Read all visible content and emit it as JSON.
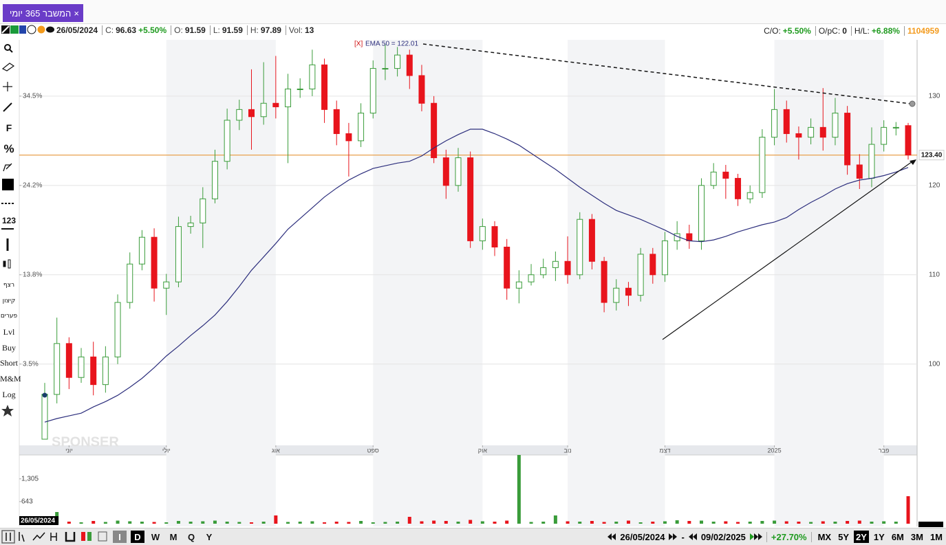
{
  "ui": {
    "tab": "המשבר 365 יומי",
    "tab_close": "×",
    "info": {
      "date": "26/05/2024",
      "c_label": "C:",
      "c": "96.63",
      "change": "+5.50%",
      "o_label": "O:",
      "o": "91.59",
      "l_label": "L:",
      "l": "91.59",
      "h_label": "H:",
      "h": "97.89",
      "vol_label": "Vol:",
      "vol": "13"
    },
    "right_info": {
      "co_label": "C/O:",
      "co": "+5.50%",
      "opc_label": "O/pC:",
      "opc": "0",
      "hl_label": "H/L:",
      "hl": "+6.88%",
      "id": "1104959"
    },
    "left_tools": [
      "F",
      "%",
      "123",
      "רצף",
      "קיצון",
      "פערים",
      "Lvl",
      "Buy",
      "Short",
      "M&M",
      "Log"
    ],
    "watermark": "SPONSER",
    "volume_date": "26/05/2024",
    "bottom": {
      "periods": [
        "I",
        "D",
        "W",
        "M",
        "Q",
        "Y"
      ],
      "from": "26/05/2024",
      "dash": "-",
      "to": "09/02/2025",
      "change": "+27.70%",
      "ranges": [
        "MX",
        "5Y",
        "2Y",
        "1Y",
        "6M",
        "3M",
        "1M"
      ]
    }
  },
  "chart_data": {
    "type": "candlestick",
    "up_color": "#3a9c3a",
    "down_color": "#e8141c",
    "open": [
      91.59,
      96.6,
      102.3,
      98.5,
      100.8,
      97.7,
      100.8,
      106.9,
      111.2,
      114.2,
      108.5,
      109.2,
      115.4,
      115.8,
      118.5,
      122.7,
      127.3,
      128.5,
      127.7,
      129.2,
      128.8,
      130.8,
      130.8,
      133.5,
      128.5,
      125.8,
      125.0,
      128.1,
      133.1,
      133.1,
      134.6,
      132.3,
      129.2,
      123.1,
      120.0,
      123.1,
      113.8,
      115.4,
      113.1,
      108.5,
      109.2,
      110.0,
      110.8,
      111.5,
      110.0,
      116.2,
      111.5,
      106.9,
      108.5,
      107.7,
      112.3,
      110.0,
      113.8,
      114.6,
      113.8,
      120.0,
      121.5,
      120.8,
      118.5,
      119.2,
      125.4,
      128.5,
      125.8,
      125.4,
      126.5,
      125.4,
      128.1,
      122.3,
      120.8,
      124.6,
      126.5,
      126.7
    ],
    "high": [
      97.89,
      105.2,
      103.0,
      101.8,
      102.5,
      102.0,
      107.8,
      112.5,
      115.0,
      115.2,
      110.1,
      116.5,
      116.6,
      119.8,
      124.0,
      128.6,
      129.6,
      133.0,
      133.8,
      134.5,
      132.5,
      132.0,
      135.2,
      134.2,
      129.5,
      127.0,
      129.2,
      134.0,
      135.8,
      135.5,
      135.2,
      133.5,
      130.0,
      124.0,
      124.2,
      123.8,
      116.3,
      116.0,
      114.0,
      110.5,
      111.2,
      111.8,
      112.6,
      114.3,
      117.0,
      116.8,
      112.0,
      109.5,
      109.2,
      113.0,
      113.0,
      114.8,
      116.0,
      115.6,
      120.8,
      122.5,
      122.3,
      121.3,
      120.0,
      126.3,
      130.8,
      129.5,
      126.6,
      127.5,
      130.9,
      129.8,
      128.9,
      123.5,
      126.5,
      127.3,
      127.1,
      127.0
    ],
    "low": [
      91.59,
      95.6,
      97.2,
      97.9,
      96.5,
      96.8,
      100.0,
      106.2,
      110.5,
      107.0,
      105.5,
      108.6,
      114.6,
      113.0,
      118.0,
      121.8,
      126.2,
      124.0,
      126.8,
      127.5,
      122.5,
      129.8,
      130.0,
      127.0,
      124.5,
      121.0,
      124.3,
      127.5,
      131.8,
      132.2,
      130.8,
      128.3,
      122.5,
      118.5,
      119.3,
      113.0,
      112.8,
      112.1,
      107.2,
      106.8,
      108.8,
      109.6,
      109.3,
      109.0,
      109.5,
      110.6,
      105.8,
      106.0,
      106.5,
      107.0,
      109.0,
      109.2,
      112.8,
      112.9,
      112.8,
      119.6,
      118.5,
      117.7,
      118.0,
      118.6,
      124.5,
      124.8,
      122.9,
      124.6,
      123.9,
      124.5,
      121.2,
      119.6,
      119.8,
      123.8,
      125.6,
      122.9
    ],
    "close": [
      96.63,
      102.3,
      98.5,
      100.8,
      97.7,
      100.8,
      106.9,
      111.2,
      114.2,
      108.5,
      109.2,
      115.4,
      115.8,
      118.5,
      122.7,
      127.3,
      128.5,
      127.7,
      129.2,
      128.8,
      130.8,
      130.8,
      133.5,
      128.5,
      125.8,
      125.0,
      128.1,
      133.1,
      133.1,
      134.6,
      132.3,
      129.2,
      123.1,
      120.0,
      123.1,
      113.8,
      115.4,
      113.1,
      108.5,
      109.2,
      110.0,
      110.8,
      111.5,
      110.0,
      116.2,
      111.5,
      106.9,
      108.5,
      107.7,
      112.3,
      110.0,
      113.8,
      114.6,
      113.8,
      120.0,
      121.5,
      120.8,
      118.5,
      119.2,
      125.4,
      128.5,
      125.8,
      125.4,
      126.5,
      125.4,
      128.1,
      122.3,
      120.8,
      124.6,
      126.5,
      126.5,
      123.4
    ],
    "ylim": [
      90.9,
      136.3
    ],
    "yticks": [
      100,
      110,
      120,
      130
    ],
    "y_pct_ticks": [
      {
        "value": 130,
        "label": "34.5%"
      },
      {
        "value": 120,
        "label": "24.2%"
      },
      {
        "value": 110,
        "label": "13.8%"
      },
      {
        "value": 100,
        "label": "3.5%"
      }
    ],
    "xticks": [
      {
        "value": 2,
        "label": "יוני"
      },
      {
        "value": 10,
        "label": "יולי"
      },
      {
        "value": 19,
        "label": "אוג"
      },
      {
        "value": 27,
        "label": "ספט"
      },
      {
        "value": 36,
        "label": "אוק"
      },
      {
        "value": 43,
        "label": "נוב"
      },
      {
        "value": 51,
        "label": "דצמ"
      },
      {
        "value": 60,
        "label": "2025"
      },
      {
        "value": 69,
        "label": "פבר"
      }
    ],
    "grid": true,
    "level": {
      "value": 123.4,
      "label": "123.40",
      "color": "#e8a04c"
    },
    "ema": {
      "tag": "[X]",
      "name": "EMA 50 = 122.01",
      "color": "#2b2d7c",
      "values": [
        93.5,
        93.9,
        94.2,
        94.5,
        95.2,
        95.8,
        96.5,
        97.4,
        98.4,
        99.6,
        100.9,
        102.0,
        103.2,
        104.3,
        105.5,
        107.0,
        108.7,
        110.5,
        112.0,
        113.5,
        115.1,
        116.3,
        117.5,
        118.7,
        119.7,
        120.6,
        121.3,
        121.9,
        122.2,
        122.5,
        122.7,
        123.3,
        124.2,
        125.0,
        125.7,
        126.3,
        126.3,
        125.8,
        125.2,
        124.5,
        123.6,
        122.7,
        121.8,
        120.8,
        119.8,
        118.9,
        118.0,
        117.2,
        116.7,
        116.2,
        115.6,
        115.0,
        114.3,
        113.8,
        113.7,
        113.9,
        114.3,
        114.8,
        115.2,
        115.6,
        115.9,
        116.4,
        117.3,
        118.1,
        118.8,
        119.6,
        120.2,
        120.6,
        120.8,
        121.1,
        121.5,
        122.01
      ]
    },
    "volume": {
      "ylim": [
        0,
        2000
      ],
      "yticks": [
        643,
        {
          "value": 1305,
          "label": "1,305"
        }
      ],
      "values": [
        13,
        340,
        60,
        40,
        80,
        50,
        90,
        70,
        60,
        50,
        40,
        80,
        60,
        70,
        90,
        60,
        50,
        40,
        60,
        240,
        50,
        60,
        70,
        40,
        60,
        50,
        80,
        40,
        50,
        60,
        200,
        70,
        90,
        80,
        60,
        110,
        70,
        60,
        90,
        2000,
        50,
        60,
        240,
        70,
        60,
        80,
        50,
        60,
        90,
        40,
        60,
        70,
        100,
        80,
        90,
        60,
        70,
        50,
        60,
        80,
        90,
        70,
        60,
        50,
        70,
        60,
        80,
        90,
        60,
        70,
        60,
        800
      ]
    }
  }
}
